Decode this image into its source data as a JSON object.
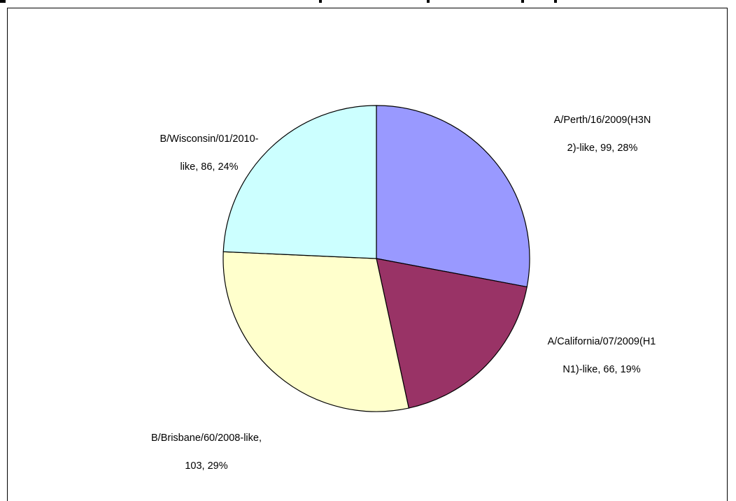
{
  "chart_data": {
    "type": "pie",
    "start_angle_deg": 0,
    "direction": "clockwise",
    "slices": [
      {
        "label_line1": "A/Perth/16/2009(H3N",
        "label_line2": "2)-like, 99, 28%",
        "value": 99,
        "percent": "28%",
        "color": "#9999FF"
      },
      {
        "label_line1": "A/California/07/2009(H1",
        "label_line2": "N1)-like, 66, 19%",
        "value": 66,
        "percent": "19%",
        "color": "#993366"
      },
      {
        "label_line1": "B/Brisbane/60/2008-like,",
        "label_line2": "103, 29%",
        "value": 103,
        "percent": "29%",
        "color": "#FFFFCC"
      },
      {
        "label_line1": "B/Wisconsin/01/2010-",
        "label_line2": "like, 86, 24%",
        "value": 86,
        "percent": "24%",
        "color": "#CCFFFF"
      }
    ]
  }
}
